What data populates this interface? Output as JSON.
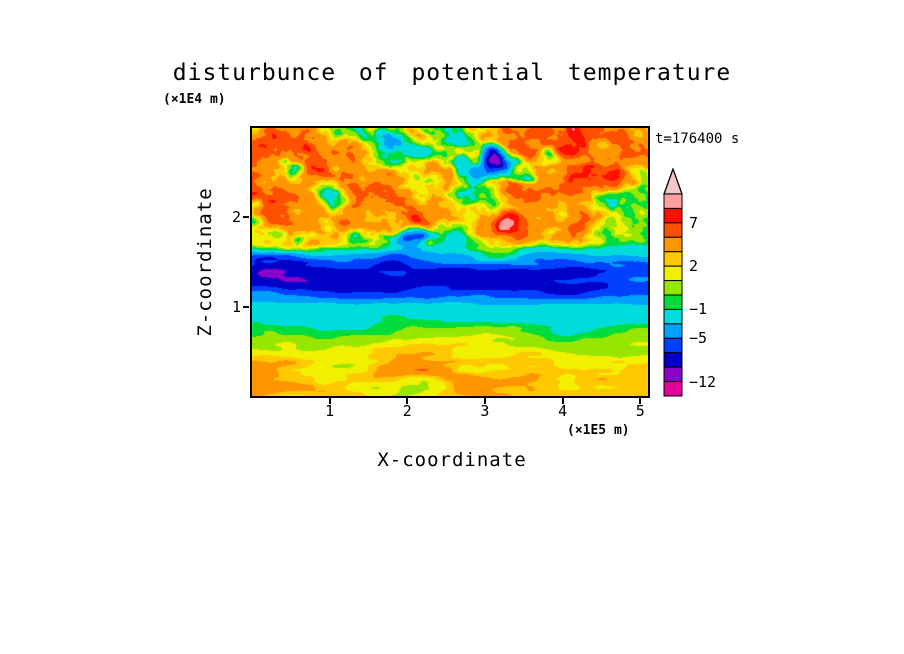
{
  "page": {
    "background": "#ffffff"
  },
  "chart_data": {
    "type": "heatmap",
    "title": "disturbunce of potential temperature",
    "time_label": "t=176400 s",
    "xlabel": "X-coordinate",
    "ylabel": "Z-coordinate",
    "x_unit": "(×1E5 m)",
    "y_unit": "(×1E4 m)",
    "x_range": [
      0,
      5.1
    ],
    "z_range": [
      0,
      3.0
    ],
    "x_ticks": [
      {
        "label": "1",
        "value": 1
      },
      {
        "label": "2",
        "value": 2
      },
      {
        "label": "3",
        "value": 3
      },
      {
        "label": "4",
        "value": 4
      },
      {
        "label": "5",
        "value": 5
      }
    ],
    "z_ticks": [
      {
        "label": "1",
        "value": 1
      },
      {
        "label": "2",
        "value": 2
      }
    ],
    "levels": [
      -12,
      -9,
      -7,
      -5,
      -3,
      -1,
      0,
      1,
      2,
      3,
      5,
      7,
      9
    ],
    "colors": [
      "#E2009B",
      "#8C00C8",
      "#0000C8",
      "#0041FF",
      "#00A0FF",
      "#00DCDC",
      "#00DC3C",
      "#96E600",
      "#F0F000",
      "#FFC800",
      "#FF9600",
      "#FF5000",
      "#FF0F00",
      "#FFA0A0"
    ],
    "colorbar_tip_color": "#F2C8CD",
    "colorbar_outline": "#000000",
    "colorbar_labels": [
      {
        "label": "7",
        "value": 7,
        "level_index": 12
      },
      {
        "label": "2",
        "value": 2,
        "level_index": 9
      },
      {
        "label": "−1",
        "value": -1,
        "level_index": 6
      },
      {
        "label": "−5",
        "value": -5,
        "level_index": 4
      },
      {
        "label": "−12",
        "value": -12,
        "level_index": 1
      }
    ],
    "field_model": {
      "description": "Procedural approximation of the depicted turbulent disturbance field: near-surface yellow layer with orange blobs (≈ +2 to +5), thin green layer (≈ 0), cyan layer (≈ -2), deep-blue horizontal band near z ≈ 1.2×1E4 m (≈ -7), and a strongly turbulent upper region of yellow/orange/red streaks (≈ +2 to +9) with scattered dark-blue vortices (≈ -5 to -9), tilted diagonally.",
      "seed": 7,
      "profile": [
        [
          0.0,
          2.4,
          1.8
        ],
        [
          0.08,
          2.8,
          2.2
        ],
        [
          0.16,
          2.0,
          1.6
        ],
        [
          0.22,
          0.6,
          1.1
        ],
        [
          0.28,
          -1.6,
          1.0
        ],
        [
          0.34,
          -2.4,
          1.1
        ],
        [
          0.4,
          -6.8,
          2.0
        ],
        [
          0.47,
          -7.2,
          2.2
        ],
        [
          0.52,
          -3.5,
          2.8
        ],
        [
          0.57,
          0.8,
          4.0
        ],
        [
          0.64,
          2.8,
          5.2
        ],
        [
          0.78,
          3.4,
          5.6
        ],
        [
          0.92,
          3.0,
          5.8
        ],
        [
          1.0,
          2.6,
          5.6
        ]
      ]
    }
  }
}
